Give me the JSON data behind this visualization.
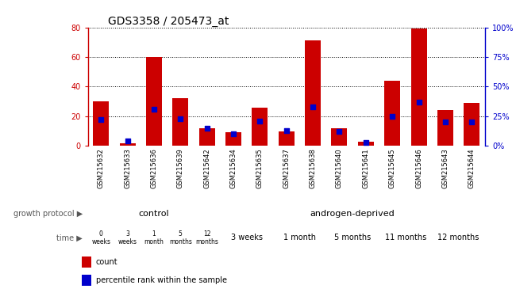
{
  "title": "GDS3358 / 205473_at",
  "samples": [
    "GSM215632",
    "GSM215633",
    "GSM215636",
    "GSM215639",
    "GSM215642",
    "GSM215634",
    "GSM215635",
    "GSM215637",
    "GSM215638",
    "GSM215640",
    "GSM215641",
    "GSM215645",
    "GSM215646",
    "GSM215643",
    "GSM215644"
  ],
  "counts": [
    30,
    2,
    60,
    32,
    12,
    9,
    26,
    10,
    71,
    12,
    3,
    44,
    79,
    24,
    29
  ],
  "percentiles": [
    22,
    4,
    31,
    23,
    15,
    10,
    21,
    13,
    33,
    12,
    3,
    25,
    37,
    20,
    20
  ],
  "ylim_left": [
    0,
    80
  ],
  "ylim_right": [
    0,
    100
  ],
  "yticks_left": [
    0,
    20,
    40,
    60,
    80
  ],
  "yticks_right": [
    0,
    25,
    50,
    75,
    100
  ],
  "bar_color": "#cc0000",
  "dot_color": "#0000cc",
  "bg_color": "#ffffff",
  "control_bg": "#aaffaa",
  "androgen_bg": "#44cc44",
  "time_bg": "#ee88ee",
  "legend_count_label": "count",
  "legend_pct_label": "percentile rank within the sample",
  "title_fontsize": 10,
  "tick_fontsize": 7,
  "ctrl_times": [
    "0\nweeks",
    "3\nweeks",
    "1\nmonth",
    "5\nmonths",
    "12\nmonths"
  ],
  "and_time_groups": [
    [
      5,
      6,
      "3 weeks"
    ],
    [
      7,
      8,
      "1 month"
    ],
    [
      9,
      10,
      "5 months"
    ],
    [
      11,
      12,
      "11 months"
    ],
    [
      13,
      14,
      "12 months"
    ]
  ]
}
